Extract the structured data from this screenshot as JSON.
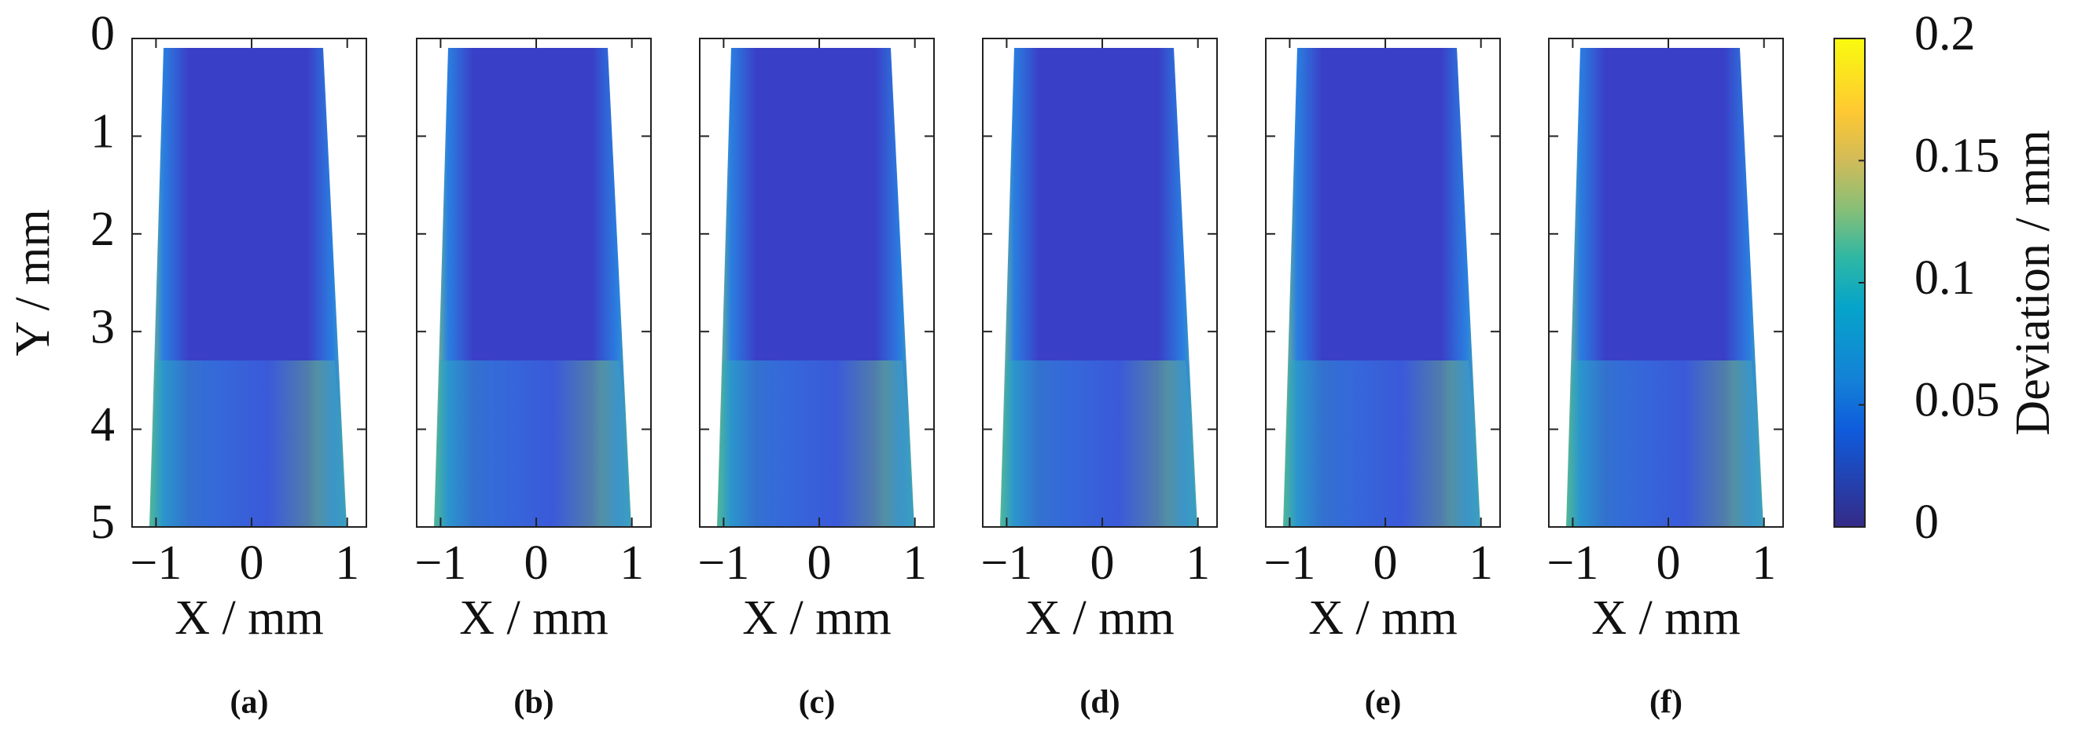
{
  "chart_data": [
    {
      "type": "heatmap",
      "caption": "(a)",
      "xlabel": "X / mm",
      "ylabel": "Y / mm",
      "xlim": [
        -1.25,
        1.2
      ],
      "ylim": [
        0,
        5
      ],
      "y_reversed": true,
      "xticks": [
        {
          "value": -1,
          "label": "−1"
        },
        0,
        1
      ],
      "yticks": [
        0,
        1,
        2,
        3,
        4,
        5
      ]
    },
    {
      "type": "heatmap",
      "caption": "(b)",
      "xlabel": "X / mm",
      "xlim": [
        -1.25,
        1.2
      ],
      "ylim": [
        0,
        5
      ],
      "y_reversed": true,
      "xticks": [
        {
          "value": -1,
          "label": "−1"
        },
        0,
        1
      ],
      "yticks": [
        0,
        1,
        2,
        3,
        4,
        5
      ],
      "ytick_labels": false
    },
    {
      "type": "heatmap",
      "caption": "(c)",
      "xlabel": "X / mm",
      "xlim": [
        -1.25,
        1.2
      ],
      "ylim": [
        0,
        5
      ],
      "y_reversed": true,
      "xticks": [
        {
          "value": -1,
          "label": "−1"
        },
        0,
        1
      ],
      "yticks": [
        0,
        1,
        2,
        3,
        4,
        5
      ],
      "ytick_labels": false
    },
    {
      "type": "heatmap",
      "caption": "(d)",
      "xlabel": "X / mm",
      "xlim": [
        -1.25,
        1.2
      ],
      "ylim": [
        0,
        5
      ],
      "y_reversed": true,
      "xticks": [
        {
          "value": -1,
          "label": "−1"
        },
        0,
        1
      ],
      "yticks": [
        0,
        1,
        2,
        3,
        4,
        5
      ],
      "ytick_labels": false
    },
    {
      "type": "heatmap",
      "caption": "(e)",
      "xlabel": "X / mm",
      "xlim": [
        -1.25,
        1.2
      ],
      "ylim": [
        0,
        5
      ],
      "y_reversed": true,
      "xticks": [
        {
          "value": -1,
          "label": "−1"
        },
        0,
        1
      ],
      "yticks": [
        0,
        1,
        2,
        3,
        4,
        5
      ],
      "ytick_labels": false
    },
    {
      "type": "heatmap",
      "caption": "(f)",
      "xlabel": "X / mm",
      "xlim": [
        -1.25,
        1.2
      ],
      "ylim": [
        0,
        5
      ],
      "y_reversed": true,
      "xticks": [
        {
          "value": -1,
          "label": "−1"
        },
        0,
        1
      ],
      "yticks": [
        0,
        1,
        2,
        3,
        4,
        5
      ],
      "ytick_labels": false
    }
  ],
  "colorbar": {
    "label": "Deviation / mm",
    "lim": [
      0,
      0.2
    ],
    "ticks": [
      0,
      0.05,
      0.1,
      0.15,
      0.2
    ]
  }
}
